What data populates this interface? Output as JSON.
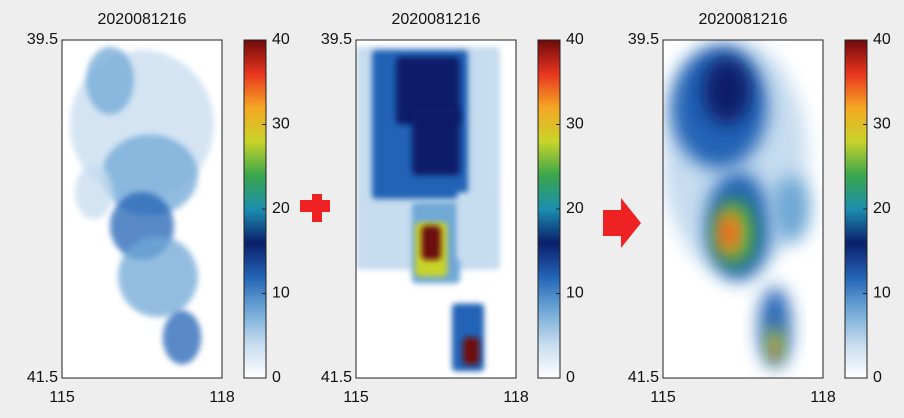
{
  "chart_data": [
    {
      "type": "heatmap",
      "title": "2020081216",
      "xlim": [
        115,
        118
      ],
      "xticks": [
        115,
        118
      ],
      "ylim": [
        41.5,
        39.5
      ],
      "yticks": [
        39.5,
        41.5
      ],
      "clim": [
        0,
        40
      ],
      "cticks": [
        0,
        10,
        20,
        30,
        40
      ],
      "colormap": [
        "#ffffff",
        "#c6dcef",
        "#6fa8d6",
        "#2363b5",
        "#0b1f6b",
        "#1b8fb0",
        "#3aa64a",
        "#c8d42a",
        "#f5a623",
        "#e8351e",
        "#6e0a0a"
      ]
    },
    {
      "type": "heatmap",
      "title": "2020081216",
      "xlim": [
        115,
        118
      ],
      "xticks": [
        115,
        118
      ],
      "ylim": [
        41.5,
        39.5
      ],
      "yticks": [
        39.5,
        41.5
      ],
      "clim": [
        0,
        40
      ],
      "cticks": [
        0,
        10,
        20,
        30,
        40
      ],
      "colormap": [
        "#ffffff",
        "#c6dcef",
        "#6fa8d6",
        "#2363b5",
        "#0b1f6b",
        "#1b8fb0",
        "#3aa64a",
        "#c8d42a",
        "#f5a623",
        "#e8351e",
        "#6e0a0a"
      ]
    },
    {
      "type": "heatmap",
      "title": "2020081216",
      "xlim": [
        115,
        118
      ],
      "xticks": [
        115,
        118
      ],
      "ylim": [
        41.5,
        39.5
      ],
      "yticks": [
        39.5,
        41.5
      ],
      "clim": [
        0,
        40
      ],
      "cticks": [
        0,
        10,
        20,
        30,
        40
      ],
      "colormap": [
        "#ffffff",
        "#c6dcef",
        "#6fa8d6",
        "#2363b5",
        "#0b1f6b",
        "#1b8fb0",
        "#3aa64a",
        "#c8d42a",
        "#f5a623",
        "#e8351e",
        "#6e0a0a"
      ]
    }
  ]
}
